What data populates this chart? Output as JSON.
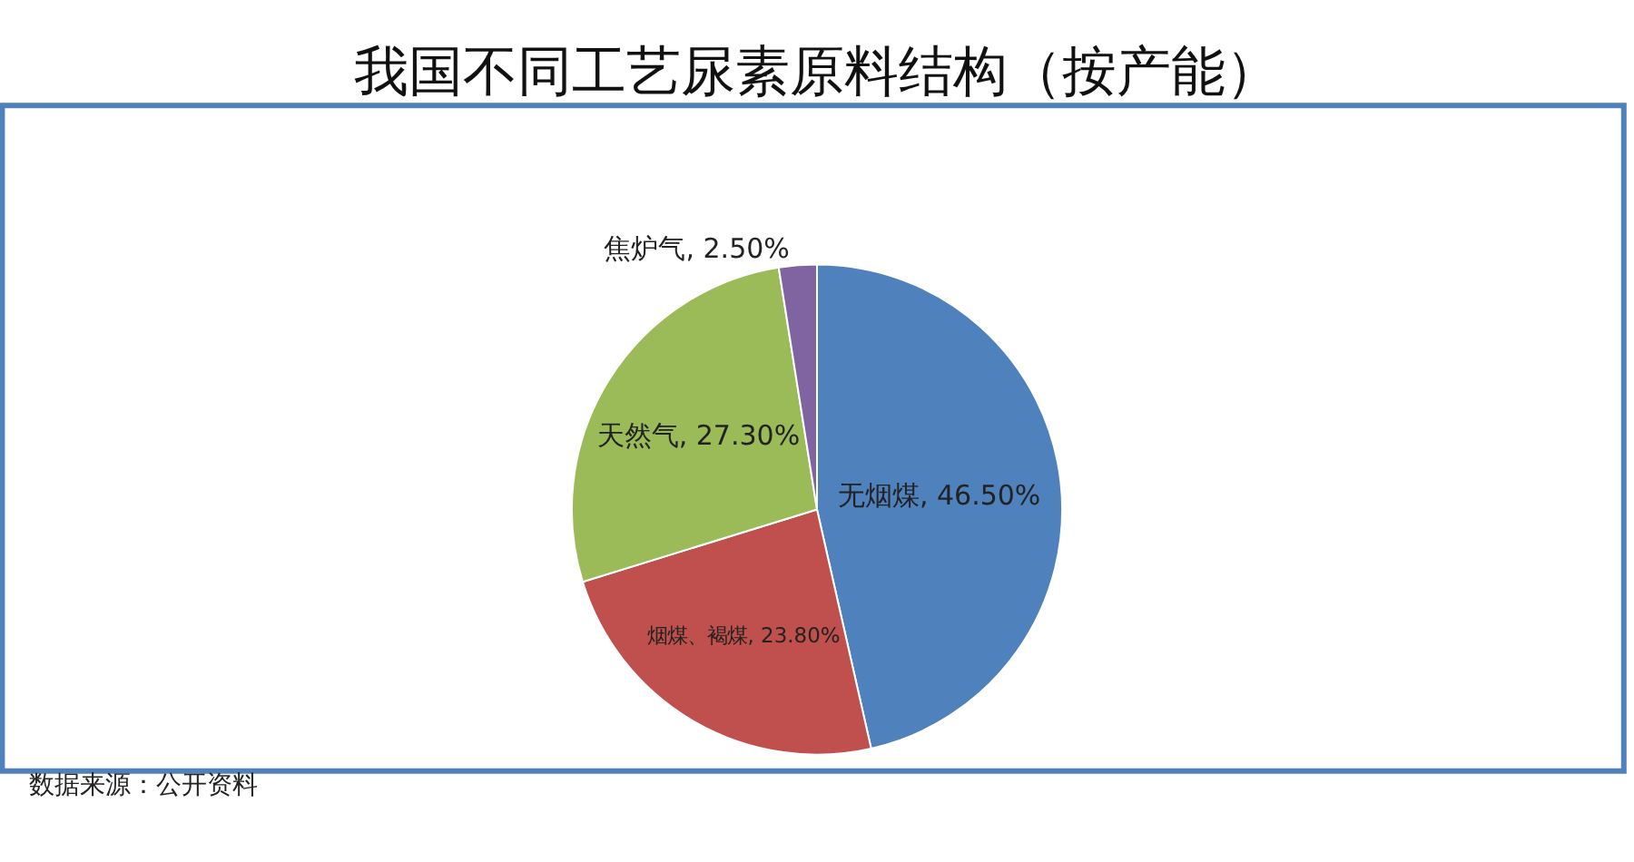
{
  "chart_data": {
    "type": "pie",
    "title": "我国不同工艺尿素原料结构（按产能）",
    "categories": [
      "无烟煤",
      "烟煤、褐煤",
      "天然气",
      "焦炉气"
    ],
    "values": [
      46.5,
      23.8,
      27.3,
      2.5
    ],
    "colors": [
      "#4f81bd",
      "#c0504d",
      "#9bbb59",
      "#8064a2"
    ],
    "value_labels": [
      "46.50%",
      "23.80%",
      "27.30%",
      "2.50%"
    ],
    "legend": false,
    "annotations": [
      "数据来源：公开资料"
    ]
  }
}
